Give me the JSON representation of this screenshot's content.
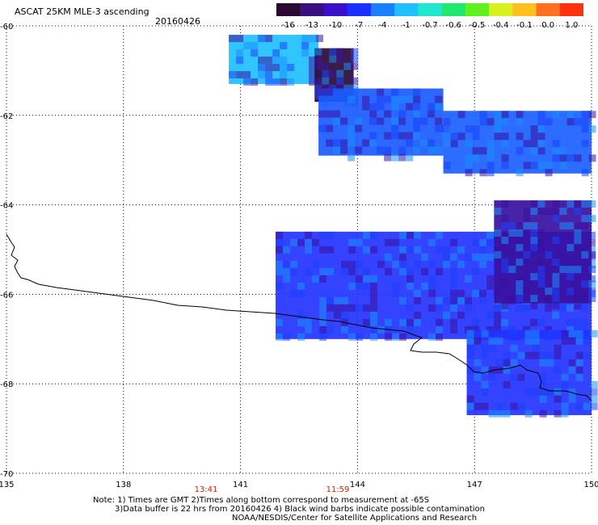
{
  "header": {
    "title": "ASCAT 25KM MLE-3 ascending",
    "date": "20160426"
  },
  "colorbar": {
    "labels": [
      "-16",
      "-13",
      "-10",
      "-7",
      "-4",
      "-1",
      "-0.7",
      "-0.6",
      "-0.5",
      "-0.4",
      "-0.1",
      "0.0",
      "1.0"
    ],
    "colors": [
      "#2a0a33",
      "#3a1080",
      "#3a10c8",
      "#1a30ff",
      "#1a80ff",
      "#20c0ff",
      "#20e8d0",
      "#20e870",
      "#60f020",
      "#d8f020",
      "#ffc020",
      "#ff7020",
      "#ff3010"
    ]
  },
  "axes": {
    "lat_labels": [
      "-60",
      "-62",
      "-64",
      "-66",
      "-68",
      "-70"
    ],
    "lon_labels": [
      "135",
      "138",
      "141",
      "144",
      "147",
      "150"
    ],
    "time_labels": [
      "13:41",
      "11:59"
    ],
    "time_color": "#cc2200"
  },
  "notes": {
    "line1": "Note: 1) Times are GMT 2)Times along bottom correspond to measurement at -65S",
    "line2": "3)Data buffer is 22 hrs from 20160426 4) Black wind barbs indicate possible contamination",
    "line3": "NOAA/NESDIS/Center for Satellite Applications and Research"
  },
  "map": {
    "projection": "lat-lon",
    "lat_range": [
      -70,
      -60
    ],
    "lon_range": [
      135,
      150
    ],
    "graticule": "dotted",
    "swaths": [
      {
        "name": "upper-swath-cyan",
        "lon": [
          140.7,
          143.0
        ],
        "lat": [
          -61.3,
          -60.2
        ],
        "color": "#20c0ff"
      },
      {
        "name": "upper-swath-dark",
        "lon": [
          142.9,
          143.9
        ],
        "lat": [
          -61.7,
          -60.5
        ],
        "color": "#2a0a33"
      },
      {
        "name": "upper-swath-blue",
        "lon": [
          143.0,
          146.2
        ],
        "lat": [
          -62.9,
          -61.4
        ],
        "color": "#1a5aff"
      },
      {
        "name": "east-swath",
        "lon": [
          146.2,
          150.0
        ],
        "lat": [
          -63.3,
          -61.9
        ],
        "color": "#1a60ff"
      },
      {
        "name": "main-swath",
        "lon": [
          141.9,
          150.0
        ],
        "lat": [
          -67.0,
          -64.6
        ],
        "color": "#2233ff"
      },
      {
        "name": "main-swath-east-dark",
        "lon": [
          147.5,
          150.0
        ],
        "lat": [
          -66.2,
          -63.9
        ],
        "color": "#3a10a0"
      },
      {
        "name": "lower-swath",
        "lon": [
          146.8,
          150.0
        ],
        "lat": [
          -68.7,
          -66.8
        ],
        "color": "#2233ff"
      }
    ]
  }
}
